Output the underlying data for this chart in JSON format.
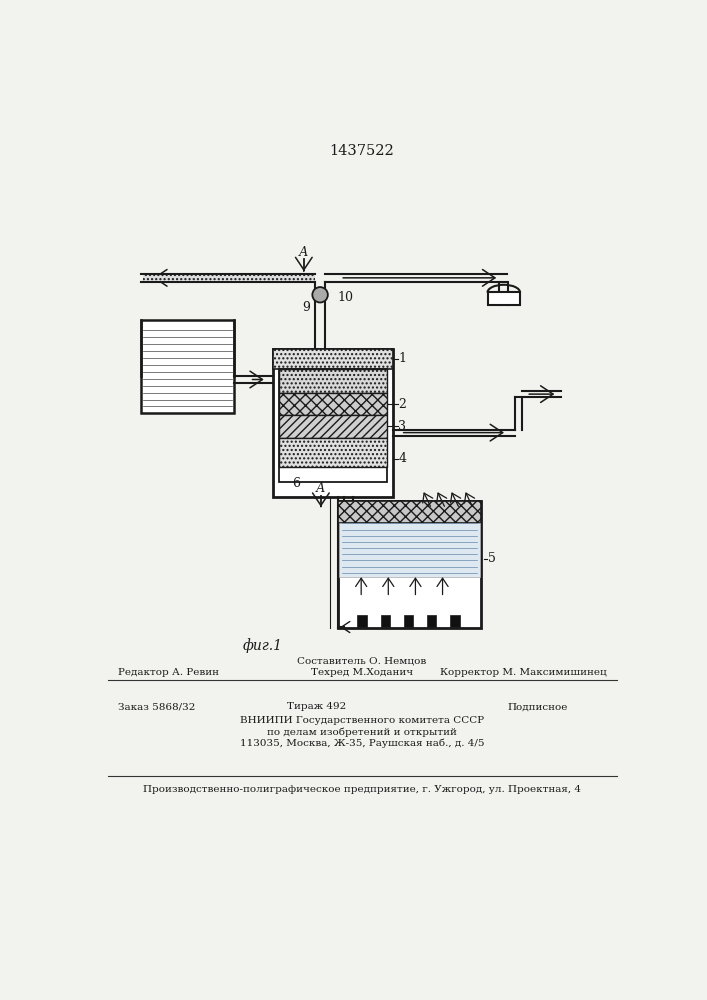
{
  "patent_number": "1437522",
  "fig_label": "фиг.1",
  "bg_color": "#f2f2ee",
  "line_color": "#1a1a1a",
  "footer_line1_above": "Составитель О. Немцов",
  "footer_line1_left": "Редактор А. Ревин",
  "footer_line1_center": "Техред М.Ходанич",
  "footer_line1_right": "Корректор М. Максимишинец",
  "footer_line2_left": "Заказ 5868/32",
  "footer_line2_center": "Тираж 492",
  "footer_line2_right": "Подписное",
  "footer_line3": "ВНИИПИ Государственного комитета СССР",
  "footer_line4": "по делам изобретений и открытий",
  "footer_line5": "113035, Москва, Ж-35, Раушская наб., д. 4/5",
  "footer_line6": "Производственно-полиграфическое предприятие, г. Ужгород, ул. Проектная, 4"
}
